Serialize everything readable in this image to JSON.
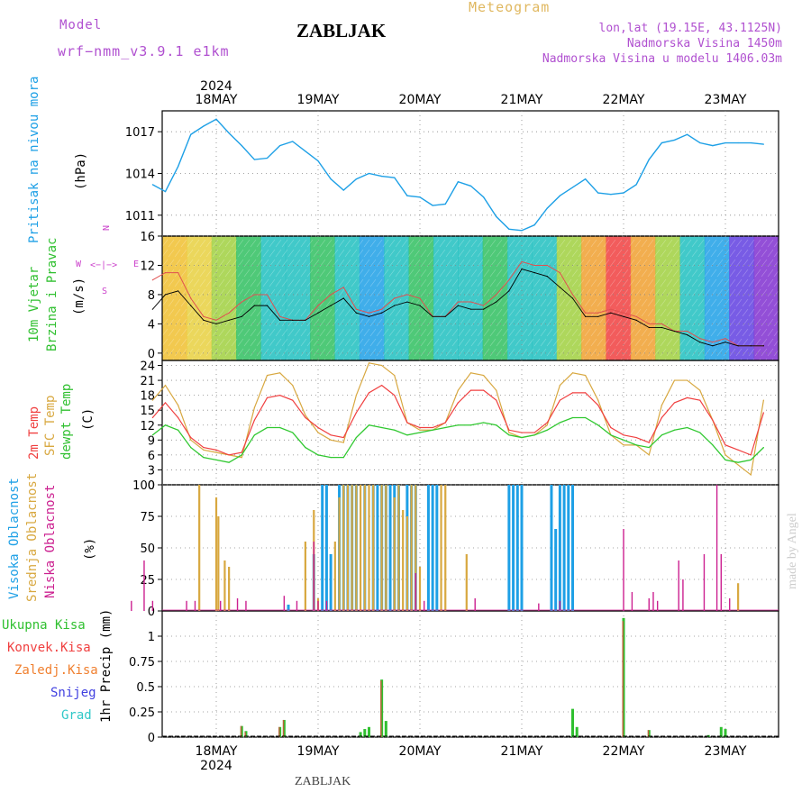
{
  "header": {
    "model_label": "Model",
    "model_name": "wrf−nmm_v3.9.1  e1km",
    "title": "ZABLJAK",
    "meteogram": "Meteogram",
    "coords": "lon,lat (19.15E, 43.1125N)",
    "altitude": "Nadmorska Visina 1450m",
    "model_altitude": "Nadmorska Visina u modelu 1406.03m",
    "year_top": "2024",
    "year_bottom": "2024",
    "footer": "ZABLJAK",
    "credit": "made by Angel"
  },
  "colors": {
    "pressure": "#1ea0e6",
    "t2m": "#f04040",
    "sfc": "#d8a840",
    "dew": "#30c830",
    "high_cloud": "#1ea0e6",
    "mid_cloud": "#d8a840",
    "low_cloud": "#cc2090",
    "ukupna": "#30c030",
    "konvek": "#f04040",
    "zaledj": "#f08030",
    "snijeg": "#4040e0",
    "grad": "#30c8c8",
    "wind_dir": "#cc44cc"
  },
  "days": [
    "18MAY",
    "19MAY",
    "20MAY",
    "21MAY",
    "22MAY",
    "23MAY"
  ],
  "panels": {
    "pressure": {
      "label": "Pritisak na nivou mora",
      "unit": "(hPa)"
    },
    "wind": {
      "label_1": "10m Vjetar",
      "label_2": "Brzina i Pravac",
      "unit": "(m/s)",
      "dir_n": "N",
      "dir_s": "S",
      "dir_w": "W",
      "dir_e": "E",
      "dir_arrow": "<−|−>",
      "dir_v": "<−|−>"
    },
    "temp": {
      "label_1": "2m Temp",
      "label_2": "SFC Temp",
      "label_3": "dewpt Temp",
      "unit": "(C)"
    },
    "cloud": {
      "label_1": "Visoka Oblacnost",
      "label_2": "Srednja Oblacnost",
      "label_3": "Niska Oblacnost",
      "unit": "(%)"
    },
    "precip": {
      "legend": [
        "Ukupna Kisa",
        "Konvek.Kisa",
        "Zaledj.Kisa",
        "Snijeg",
        "Grad"
      ],
      "unit": "1hr Precip (mm)"
    }
  },
  "chart_data": [
    {
      "type": "line",
      "title": "Pritisak na nivou mora",
      "ylabel": "(hPa)",
      "ylim": [
        1009.5,
        1018.5
      ],
      "yticks": [
        1011,
        1014,
        1017
      ],
      "x_hours": [
        0,
        3,
        6,
        9,
        12,
        15,
        18,
        21,
        24,
        27,
        30,
        33,
        36,
        39,
        42,
        45,
        48,
        51,
        54,
        57,
        60,
        63,
        66,
        69,
        72,
        75,
        78,
        81,
        84,
        87,
        90,
        93,
        96,
        99,
        102,
        105,
        108,
        111,
        114,
        117,
        120,
        123,
        126,
        129,
        132,
        135,
        138,
        141,
        144
      ],
      "series": [
        {
          "name": "Pritisak",
          "values": [
            1013.2,
            1012.7,
            1014.5,
            1016.8,
            1017.4,
            1017.9,
            1016.9,
            1016.0,
            1015.0,
            1015.1,
            1016.0,
            1016.3,
            1015.6,
            1014.9,
            1013.6,
            1012.8,
            1013.6,
            1014.0,
            1013.8,
            1013.7,
            1012.4,
            1012.3,
            1011.7,
            1011.8,
            1013.4,
            1013.1,
            1012.3,
            1010.9,
            1010.0,
            1009.9,
            1010.3,
            1011.5,
            1012.4,
            1013.0,
            1013.6,
            1012.6,
            1012.5,
            1012.6,
            1013.2,
            1015.0,
            1016.2,
            1016.4,
            1016.8,
            1016.2,
            1016.0,
            1016.2,
            1016.2,
            1016.2,
            1016.1
          ]
        }
      ]
    },
    {
      "type": "line",
      "title": "10m Vjetar Brzina i Pravac",
      "ylabel": "(m/s)",
      "ylim": [
        -1,
        16
      ],
      "yticks": [
        0,
        4,
        8,
        12,
        16
      ],
      "x_hours": [
        0,
        3,
        6,
        9,
        12,
        15,
        18,
        21,
        24,
        27,
        30,
        33,
        36,
        39,
        42,
        45,
        48,
        51,
        54,
        57,
        60,
        63,
        66,
        69,
        72,
        75,
        78,
        81,
        84,
        87,
        90,
        93,
        96,
        99,
        102,
        105,
        108,
        111,
        114,
        117,
        120,
        123,
        126,
        129,
        132,
        135,
        138,
        141,
        144
      ],
      "series": [
        {
          "name": "Brzina",
          "values": [
            6,
            8,
            8.5,
            6.5,
            4.5,
            4,
            4.5,
            5,
            6.5,
            6.5,
            4.5,
            4.5,
            4.5,
            5.5,
            6.5,
            7.5,
            5.5,
            5,
            5.5,
            6.5,
            7,
            6.5,
            5,
            5,
            6.5,
            6,
            6,
            7,
            8.5,
            11.5,
            11,
            10.5,
            9,
            7.5,
            5,
            5,
            5.5,
            5,
            4.5,
            3.5,
            3.5,
            3,
            2.5,
            1.5,
            1,
            1.5,
            1,
            1,
            1
          ]
        },
        {
          "name": "Udari",
          "values": [
            10,
            11,
            11,
            7.5,
            5,
            4.5,
            5.5,
            7,
            8,
            8,
            5,
            4.5,
            4.5,
            6.5,
            8,
            9,
            6,
            5.5,
            6,
            7.5,
            8,
            7.5,
            5,
            5,
            7,
            7,
            6.5,
            8,
            10,
            12.5,
            12,
            12,
            11,
            8,
            5.5,
            5.5,
            6,
            5.5,
            5,
            4,
            4,
            3,
            3,
            2,
            1.5,
            2,
            1,
            1,
            1
          ]
        }
      ]
    },
    {
      "type": "line",
      "title": "Temperatura",
      "ylabel": "(C)",
      "ylim": [
        0,
        25
      ],
      "yticks": [
        0,
        3,
        6,
        9,
        12,
        15,
        18,
        21,
        24
      ],
      "x_hours": [
        0,
        3,
        6,
        9,
        12,
        15,
        18,
        21,
        24,
        27,
        30,
        33,
        36,
        39,
        42,
        45,
        48,
        51,
        54,
        57,
        60,
        63,
        66,
        69,
        72,
        75,
        78,
        81,
        84,
        87,
        90,
        93,
        96,
        99,
        102,
        105,
        108,
        111,
        114,
        117,
        120,
        123,
        126,
        129,
        132,
        135,
        138,
        141,
        144
      ],
      "series": [
        {
          "name": "2m Temp",
          "values": [
            13.5,
            16.5,
            13.5,
            9.5,
            7.5,
            7,
            6,
            6.5,
            13,
            17.5,
            18,
            17,
            13.5,
            11.5,
            10,
            9.5,
            14.5,
            18.5,
            20,
            18,
            12.5,
            11.5,
            11.5,
            12.5,
            16.5,
            19,
            19,
            17,
            11,
            10.5,
            10.5,
            12.5,
            17,
            18.5,
            18.5,
            16,
            11.5,
            10,
            9.5,
            8.5,
            13.5,
            16.5,
            17.5,
            17,
            13,
            8,
            7,
            6,
            14.5
          ]
        },
        {
          "name": "SFC Temp",
          "values": [
            17,
            20,
            16,
            9,
            7,
            6.5,
            6,
            5.5,
            15.5,
            22,
            22.5,
            20,
            14,
            10.5,
            9,
            8.5,
            18,
            24.5,
            24,
            22,
            12.5,
            11,
            11,
            12.5,
            19,
            22.5,
            22,
            19,
            10.5,
            9.5,
            10,
            12,
            20,
            22.5,
            22,
            17,
            10,
            8,
            8,
            6,
            16,
            21,
            21,
            19,
            13,
            6,
            4,
            2,
            17
          ]
        },
        {
          "name": "dewpt Temp",
          "values": [
            10,
            12,
            11,
            7.5,
            5.5,
            5,
            4.5,
            6,
            10,
            11.5,
            11.5,
            10.5,
            7.5,
            6,
            5.5,
            5.5,
            9.5,
            12,
            11.5,
            11,
            10,
            10.5,
            11,
            11.5,
            12,
            12,
            12.5,
            12,
            10,
            9.5,
            10,
            11,
            12.5,
            13.5,
            13.5,
            12,
            10,
            9,
            8,
            7.5,
            10,
            11,
            11.5,
            10.5,
            8,
            5,
            4.5,
            5,
            7.5
          ]
        }
      ]
    },
    {
      "type": "bar",
      "title": "Oblacnost",
      "ylabel": "(%)",
      "ylim": [
        0,
        100
      ],
      "yticks": [
        0,
        25,
        50,
        75,
        100
      ],
      "series": [
        {
          "name": "Visoka Oblacnost",
          "points": [
            [
              32,
              5
            ],
            [
              38,
              45
            ],
            [
              40,
              100
            ],
            [
              41,
              100
            ],
            [
              42,
              45
            ],
            [
              44,
              100
            ],
            [
              45,
              100
            ],
            [
              46,
              100
            ],
            [
              47,
              100
            ],
            [
              48,
              100
            ],
            [
              50,
              100
            ],
            [
              52,
              100
            ],
            [
              53,
              100
            ],
            [
              54,
              100
            ],
            [
              55,
              100
            ],
            [
              56,
              100
            ],
            [
              57,
              100
            ],
            [
              58,
              100
            ],
            [
              60,
              100
            ],
            [
              61,
              100
            ],
            [
              62,
              100
            ],
            [
              65,
              100
            ],
            [
              66,
              100
            ],
            [
              67,
              100
            ],
            [
              84,
              100
            ],
            [
              85,
              100
            ],
            [
              86,
              100
            ],
            [
              87,
              100
            ],
            [
              94,
              100
            ],
            [
              95,
              65
            ],
            [
              96,
              100
            ],
            [
              97,
              100
            ],
            [
              98,
              100
            ],
            [
              99,
              100
            ]
          ]
        },
        {
          "name": "Srednja Oblacnost",
          "points": [
            [
              11,
              100
            ],
            [
              15,
              90
            ],
            [
              15.5,
              75
            ],
            [
              17,
              40
            ],
            [
              18,
              35
            ],
            [
              36,
              55
            ],
            [
              38,
              80
            ],
            [
              39,
              10
            ],
            [
              43,
              55
            ],
            [
              44,
              90
            ],
            [
              45,
              100
            ],
            [
              46,
              100
            ],
            [
              47,
              100
            ],
            [
              48,
              100
            ],
            [
              49,
              100
            ],
            [
              50,
              100
            ],
            [
              51,
              100
            ],
            [
              52,
              100
            ],
            [
              54,
              100
            ],
            [
              55,
              100
            ],
            [
              57,
              90
            ],
            [
              58,
              100
            ],
            [
              59,
              80
            ],
            [
              60,
              75
            ],
            [
              61,
              100
            ],
            [
              62,
              100
            ],
            [
              63,
              35
            ],
            [
              68,
              100
            ],
            [
              69,
              100
            ],
            [
              74,
              45
            ],
            [
              138,
              22
            ]
          ]
        },
        {
          "name": "Niska Oblacnost",
          "points": [
            [
              -5,
              8
            ],
            [
              -2,
              40
            ],
            [
              0,
              8
            ],
            [
              8,
              8
            ],
            [
              10,
              8
            ],
            [
              16,
              8
            ],
            [
              20,
              10
            ],
            [
              22,
              8
            ],
            [
              31,
              12
            ],
            [
              34,
              8
            ],
            [
              38,
              55
            ],
            [
              39,
              8
            ],
            [
              41,
              8
            ],
            [
              62,
              30
            ],
            [
              64,
              8
            ],
            [
              76,
              10
            ],
            [
              91,
              6
            ],
            [
              96,
              8
            ],
            [
              111,
              65
            ],
            [
              113,
              15
            ],
            [
              117,
              10
            ],
            [
              118,
              15
            ],
            [
              119,
              8
            ],
            [
              124,
              40
            ],
            [
              125,
              25
            ],
            [
              130,
              45
            ],
            [
              133,
              100
            ],
            [
              134,
              45
            ],
            [
              136,
              10
            ]
          ]
        }
      ]
    },
    {
      "type": "bar",
      "title": "1hr Precip",
      "ylabel": "1hr Precip (mm)",
      "ylim": [
        0,
        1.25
      ],
      "yticks": [
        0,
        0.25,
        0.5,
        0.75,
        1
      ],
      "series": [
        {
          "name": "Ukupna Kisa",
          "points": [
            [
              21,
              0.11
            ],
            [
              22,
              0.06
            ],
            [
              30,
              0.1
            ],
            [
              31,
              0.17
            ],
            [
              49,
              0.05
            ],
            [
              50,
              0.08
            ],
            [
              51,
              0.1
            ],
            [
              54,
              0.57
            ],
            [
              55,
              0.16
            ],
            [
              99,
              0.28
            ],
            [
              100,
              0.1
            ],
            [
              111,
              1.18
            ],
            [
              117,
              0.07
            ],
            [
              131,
              0.02
            ],
            [
              134,
              0.1
            ],
            [
              135,
              0.08
            ]
          ]
        },
        {
          "name": "Konvek.Kisa",
          "points": [
            [
              21,
              0.11
            ],
            [
              22,
              0.05
            ],
            [
              30,
              0.1
            ],
            [
              31,
              0.17
            ],
            [
              54,
              0.56
            ],
            [
              111,
              1.15
            ],
            [
              117,
              0.07
            ]
          ]
        }
      ]
    }
  ]
}
